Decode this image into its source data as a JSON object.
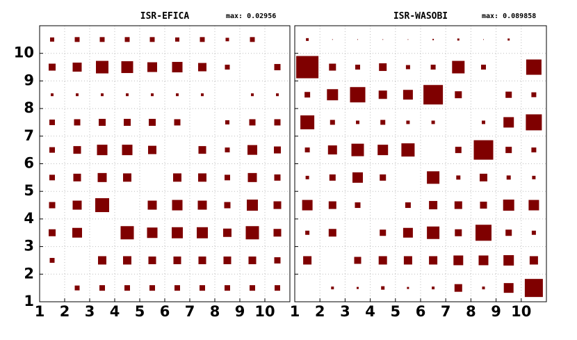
{
  "chart_data": [
    {
      "type": "hinton",
      "title": "ISR-EFICA",
      "max_label": "max:",
      "max": 0.02956,
      "color": "#7f0000",
      "xlim": [
        1,
        11
      ],
      "ylim": [
        1,
        11
      ],
      "xticks": [
        1,
        2,
        3,
        4,
        5,
        6,
        7,
        8,
        9,
        10
      ],
      "yticks": [
        1,
        2,
        3,
        4,
        5,
        6,
        7,
        8,
        9,
        10
      ],
      "show_ytick_labels": true,
      "grid": true,
      "values": [
        [
          null,
          0.0103,
          0.0118,
          0.0118,
          0.0118,
          0.0118,
          0.0118,
          0.0118,
          0.0118,
          0.0118
        ],
        [
          0.0103,
          null,
          0.0177,
          0.0177,
          0.0163,
          0.0163,
          0.0163,
          0.0163,
          0.0163,
          0.0133
        ],
        [
          0.0148,
          0.0207,
          null,
          0.0281,
          0.0222,
          0.0236,
          0.0236,
          0.0177,
          0.0281,
          0.0163
        ],
        [
          0.0133,
          0.0192,
          0.02956,
          null,
          0.0192,
          0.0222,
          0.0192,
          0.0133,
          0.0236,
          0.0163
        ],
        [
          0.0118,
          0.0163,
          0.0192,
          0.0177,
          null,
          0.0177,
          0.0177,
          0.0118,
          0.0192,
          0.0133
        ],
        [
          0.0118,
          0.0163,
          0.0222,
          0.0222,
          0.0177,
          null,
          0.0163,
          0.0103,
          0.0207,
          0.0148
        ],
        [
          0.0118,
          0.0133,
          0.0148,
          0.0148,
          0.0148,
          0.0133,
          null,
          0.0089,
          0.0133,
          0.0133
        ],
        [
          0.0059,
          0.0059,
          0.0059,
          0.0059,
          0.0059,
          0.0059,
          0.0059,
          null,
          0.0059,
          0.0059
        ],
        [
          0.0148,
          0.0192,
          0.0266,
          0.0251,
          0.0207,
          0.0222,
          0.0177,
          0.0103,
          null,
          0.0133
        ],
        [
          0.0089,
          0.0103,
          0.0103,
          0.0103,
          0.0103,
          0.0089,
          0.0103,
          0.0074,
          0.0103,
          null
        ]
      ]
    },
    {
      "type": "hinton",
      "title": "ISR-WASOBI",
      "max_label": "max:",
      "max": 0.089858,
      "color": "#7f0000",
      "xlim": [
        1,
        11
      ],
      "ylim": [
        1,
        11
      ],
      "xticks": [
        1,
        2,
        3,
        4,
        5,
        6,
        7,
        8,
        9,
        10
      ],
      "yticks": [
        1,
        2,
        3,
        4,
        5,
        6,
        7,
        8,
        9,
        10
      ],
      "show_ytick_labels": false,
      "grid": true,
      "values": [
        [
          null,
          0.0112,
          0.0084,
          0.014,
          0.0084,
          0.0112,
          0.0309,
          0.0112,
          0.0393,
          0.073
        ],
        [
          0.0337,
          null,
          0.0281,
          0.0337,
          0.0337,
          0.0337,
          0.0393,
          0.0393,
          0.0421,
          0.0337
        ],
        [
          0.0168,
          0.0309,
          null,
          0.0253,
          0.0393,
          0.0505,
          0.0281,
          0.0646,
          0.0253,
          0.0168
        ],
        [
          0.0421,
          0.0309,
          0.0225,
          null,
          0.0225,
          0.0337,
          0.0309,
          0.0281,
          0.0449,
          0.0421
        ],
        [
          0.014,
          0.0253,
          0.0421,
          0.0253,
          null,
          0.0505,
          0.0168,
          0.0309,
          0.0168,
          0.014
        ],
        [
          0.0197,
          0.0365,
          0.0505,
          0.0421,
          0.0534,
          null,
          0.0253,
          0.0786,
          0.0253,
          0.0197
        ],
        [
          0.0562,
          0.0197,
          0.014,
          0.0197,
          0.014,
          0.014,
          null,
          0.014,
          0.0421,
          0.0646
        ],
        [
          0.0225,
          0.0449,
          0.0618,
          0.0337,
          0.0393,
          0.0786,
          0.0281,
          null,
          0.0253,
          0.0197
        ],
        [
          0.089858,
          0.0281,
          0.0197,
          0.0309,
          0.0168,
          0.0197,
          0.0505,
          0.0197,
          null,
          0.0618
        ],
        [
          0.0112,
          0.0028,
          0.0028,
          0.0028,
          0.0028,
          0.0056,
          0.0084,
          0.0028,
          0.0084,
          null
        ]
      ]
    }
  ]
}
